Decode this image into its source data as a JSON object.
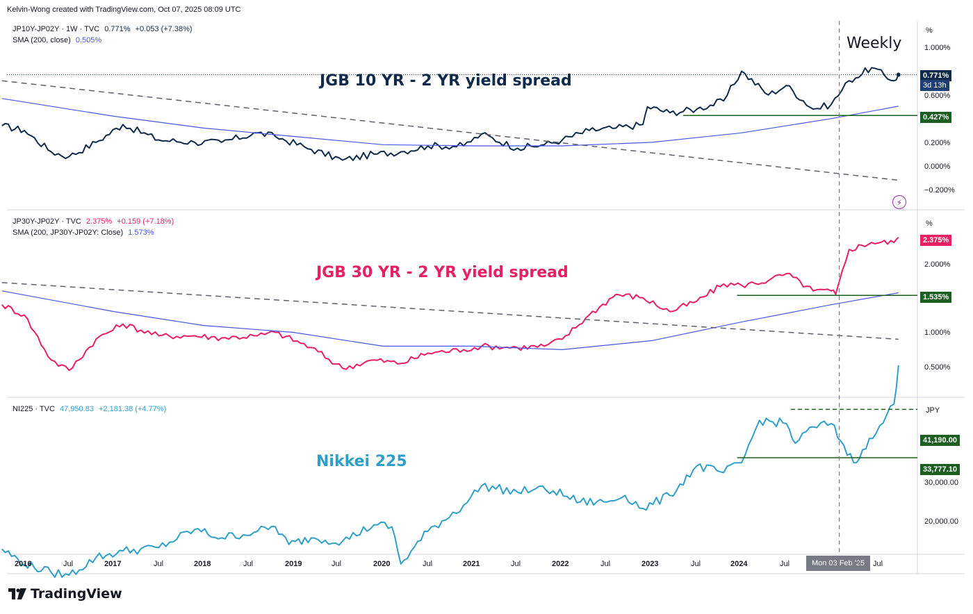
{
  "header": {
    "attribution": "Kelvin-Wong created with TradingView.com, Oct 07, 2025 08:09 UTC"
  },
  "annotation": {
    "timeframe": "Weekly",
    "cursor_date": "Mon 03 Feb '25"
  },
  "branding": {
    "logo_text": "TradingView"
  },
  "icons": {
    "alert": "lightning-icon",
    "logo": "tradingview-logo-icon"
  },
  "colors": {
    "spread10": "#0f2a4a",
    "spread30": "#e91e63",
    "nikkei": "#2e9fc9",
    "sma": "#4656e6",
    "support": "#1b5e20"
  },
  "panes": {
    "p1": {
      "legend_symbol": "JP10Y-JP02Y · 1W · TVC",
      "legend_value": "0.771%",
      "legend_change": "+0.053 (+7.38%)",
      "sma_label": "SMA (200, close)",
      "sma_value": "0.505%",
      "title": "JGB 10 YR - 2 YR yield spread",
      "unit": "%",
      "axis": [
        "1.000%",
        "0.600%",
        "0.200%",
        "0.000%",
        "−0.200%"
      ],
      "last_tag": "0.771%",
      "countdown": "3d 13h",
      "support_tag": "0.427%"
    },
    "p2": {
      "legend_symbol": "JP30Y-JP02Y · TVC",
      "legend_value": "2.375%",
      "legend_change": "+0.159 (+7.18%)",
      "sma_label": "SMA (200, JP30Y-JP02Y: Close)",
      "sma_value": "1.573%",
      "title": "JGB 30 YR - 2 YR yield spread",
      "unit": "%",
      "axis": [
        "2.000%",
        "1.000%",
        "0.500%"
      ],
      "last_tag": "2.375%",
      "support_tag": "1.535%"
    },
    "p3": {
      "legend_symbol": "NI225 · TVC",
      "legend_value": "47,950.83",
      "legend_change": "+2,181.38 (+4.77%)",
      "title": "Nikkei 225",
      "unit": "JPY",
      "axis": [
        "30,000.00",
        "20,000.00"
      ],
      "resistance_tag": "41,190.00",
      "support_tag": "33,777.10"
    }
  },
  "x_axis": [
    "2016",
    "Jul",
    "2017",
    "Jul",
    "2018",
    "Jul",
    "2019",
    "Jul",
    "2020",
    "Jul",
    "2021",
    "Jul",
    "2022",
    "Jul",
    "2023",
    "Jul",
    "2024",
    "Jul",
    "2025",
    "Jul"
  ],
  "chart_data": [
    {
      "type": "line",
      "title": "JGB 10 YR - 2 YR yield spread",
      "ylabel": "%",
      "series": [
        {
          "name": "JP10Y-JP02Y",
          "x": [
            2015.75,
            2016.0,
            2016.3,
            2016.5,
            2016.8,
            2017.1,
            2017.5,
            2017.9,
            2018.2,
            2018.6,
            2018.8,
            2019.2,
            2019.55,
            2019.9,
            2020.2,
            2020.5,
            2020.9,
            2021.1,
            2021.5,
            2021.8,
            2022.0,
            2022.3,
            2022.6,
            2022.9,
            2022.95,
            2023.2,
            2023.5,
            2023.8,
            2024.0,
            2024.3,
            2024.5,
            2024.8,
            2025.0,
            2025.2,
            2025.45,
            2025.7,
            2025.75
          ],
          "values": [
            0.34,
            0.3,
            0.12,
            0.08,
            0.2,
            0.35,
            0.22,
            0.2,
            0.2,
            0.28,
            0.25,
            0.14,
            0.05,
            0.1,
            0.12,
            0.17,
            0.17,
            0.27,
            0.15,
            0.18,
            0.22,
            0.3,
            0.32,
            0.35,
            0.5,
            0.45,
            0.48,
            0.55,
            0.8,
            0.6,
            0.68,
            0.48,
            0.52,
            0.72,
            0.83,
            0.72,
            0.771
          ]
        },
        {
          "name": "SMA (200, close)",
          "x": [
            2015.75,
            2017.0,
            2018.0,
            2019.0,
            2020.0,
            2021.0,
            2022.0,
            2023.0,
            2024.0,
            2025.0,
            2025.75
          ],
          "values": [
            0.57,
            0.42,
            0.32,
            0.25,
            0.18,
            0.17,
            0.17,
            0.2,
            0.28,
            0.4,
            0.505
          ]
        }
      ],
      "annotations": [
        {
          "type": "trendline",
          "style": "dashed",
          "x": [
            2015.75,
            2025.75
          ],
          "values": [
            0.72,
            -0.12
          ]
        },
        {
          "type": "support",
          "value": 0.427,
          "x_start": 2023.35
        }
      ],
      "ylim": [
        -0.3,
        1.15
      ]
    },
    {
      "type": "line",
      "title": "JGB 30 YR - 2 YR yield spread",
      "ylabel": "%",
      "series": [
        {
          "name": "JP30Y-JP02Y",
          "x": [
            2015.75,
            2016.0,
            2016.3,
            2016.5,
            2016.8,
            2017.1,
            2017.5,
            2017.9,
            2018.2,
            2018.6,
            2018.8,
            2019.2,
            2019.55,
            2019.9,
            2020.2,
            2020.5,
            2020.9,
            2021.1,
            2021.5,
            2021.8,
            2022.0,
            2022.3,
            2022.6,
            2022.9,
            2023.2,
            2023.5,
            2023.8,
            2024.0,
            2024.3,
            2024.5,
            2024.8,
            2025.0,
            2025.05,
            2025.2,
            2025.45,
            2025.7,
            2025.75
          ],
          "values": [
            1.4,
            1.25,
            0.6,
            0.45,
            0.9,
            1.12,
            0.95,
            0.95,
            0.92,
            0.95,
            1.0,
            0.78,
            0.48,
            0.6,
            0.55,
            0.7,
            0.75,
            0.8,
            0.78,
            0.8,
            0.9,
            1.25,
            1.55,
            1.5,
            1.3,
            1.45,
            1.7,
            1.68,
            1.75,
            1.85,
            1.6,
            1.6,
            1.55,
            2.2,
            2.3,
            2.3,
            2.375
          ]
        },
        {
          "name": "SMA (200, JP30Y-JP02Y: Close)",
          "x": [
            2015.75,
            2017.0,
            2018.0,
            2019.0,
            2020.0,
            2021.0,
            2022.0,
            2023.0,
            2024.0,
            2025.0,
            2025.75
          ],
          "values": [
            1.6,
            1.3,
            1.1,
            1.0,
            0.8,
            0.8,
            0.75,
            0.88,
            1.15,
            1.4,
            1.573
          ]
        }
      ],
      "annotations": [
        {
          "type": "trendline",
          "style": "dashed",
          "x": [
            2015.75,
            2025.75
          ],
          "values": [
            1.72,
            0.9
          ]
        },
        {
          "type": "support",
          "value": 1.535,
          "x_start": 2023.95
        }
      ],
      "ylim": [
        0.15,
        2.6
      ]
    },
    {
      "type": "line",
      "title": "Nikkei 225",
      "ylabel": "JPY",
      "series": [
        {
          "name": "NI225",
          "x": [
            2015.75,
            2016.0,
            2016.3,
            2016.5,
            2016.8,
            2017.1,
            2017.5,
            2017.9,
            2018.2,
            2018.6,
            2018.8,
            2018.95,
            2019.2,
            2019.55,
            2019.9,
            2020.1,
            2020.2,
            2020.5,
            2020.9,
            2021.1,
            2021.5,
            2021.7,
            2021.9,
            2022.2,
            2022.5,
            2022.7,
            2022.9,
            2023.2,
            2023.5,
            2023.8,
            2024.0,
            2024.2,
            2024.5,
            2024.6,
            2024.8,
            2025.0,
            2025.25,
            2025.35,
            2025.5,
            2025.7,
            2025.75
          ],
          "values": [
            19800,
            17500,
            16200,
            15800,
            18500,
            19500,
            20000,
            22800,
            21500,
            22500,
            23200,
            20500,
            21500,
            21000,
            23500,
            23200,
            17500,
            22500,
            26500,
            29500,
            28500,
            29000,
            28700,
            27000,
            27000,
            28000,
            26000,
            28000,
            32500,
            31500,
            33000,
            39500,
            39000,
            36000,
            38500,
            39000,
            33000,
            35000,
            37500,
            42000,
            47950.83
          ]
        }
      ],
      "annotations": [
        {
          "type": "resistance",
          "value": 41190.0,
          "style": "dashed",
          "x_start": 2024.55
        },
        {
          "type": "support",
          "value": 33777.1,
          "x_start": 2023.95
        }
      ],
      "ylim": [
        13000,
        50000
      ]
    }
  ]
}
